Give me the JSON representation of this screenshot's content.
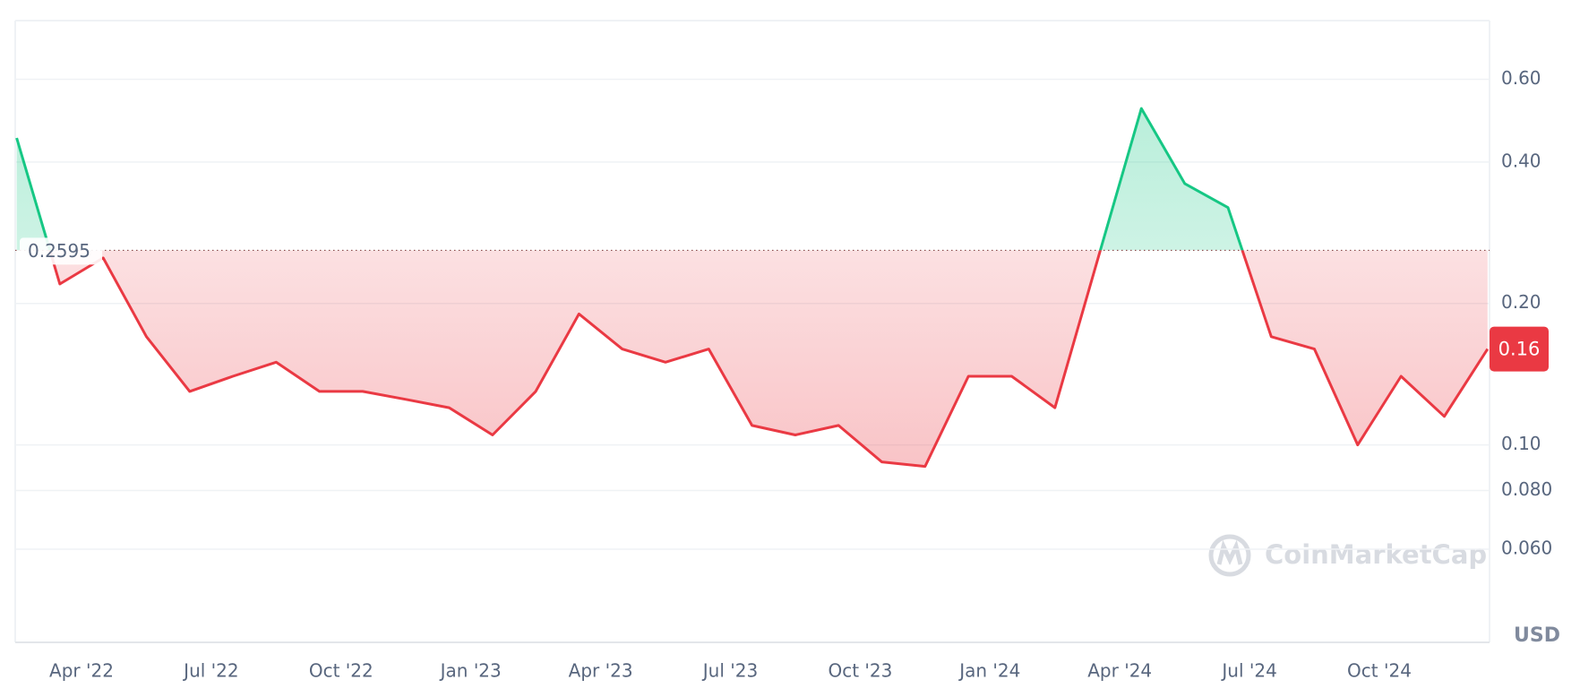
{
  "chart_data": {
    "type": "line",
    "categories": [
      null,
      null,
      "Apr '22",
      null,
      null,
      "Jul '22",
      null,
      null,
      "Oct '22",
      null,
      null,
      "Jan '23",
      null,
      null,
      "Apr '23",
      null,
      null,
      "Jul '23",
      null,
      null,
      "Oct '23",
      null,
      null,
      "Jan '24",
      null,
      null,
      "Apr '24",
      null,
      null,
      "Jul '24",
      null,
      null,
      "Oct '24",
      null,
      null
    ],
    "values": [
      0.45,
      0.22,
      0.25,
      0.17,
      0.13,
      0.14,
      0.15,
      0.13,
      0.13,
      0.125,
      0.12,
      0.105,
      0.13,
      0.19,
      0.16,
      0.15,
      0.16,
      0.11,
      0.105,
      0.11,
      0.092,
      0.09,
      0.14,
      0.14,
      0.12,
      0.25,
      0.52,
      0.36,
      0.32,
      0.17,
      0.16,
      0.1,
      0.14,
      0.115,
      0.16
    ],
    "baseline": 0.2595,
    "colors": {
      "above": "#16c784",
      "below": "#ea3943"
    },
    "log_scale": true,
    "ylim": [
      0.038,
      0.8
    ],
    "yticks": [
      {
        "value": 0.06,
        "label": "0.060"
      },
      {
        "value": 0.08,
        "label": "0.080"
      },
      {
        "value": 0.1,
        "label": "0.10"
      },
      {
        "value": 0.2,
        "label": "0.20"
      },
      {
        "value": 0.4,
        "label": "0.40"
      },
      {
        "value": 0.6,
        "label": "0.60"
      }
    ],
    "grid": true,
    "y_unit_label": "USD",
    "watermark": "CoinMarketCap"
  }
}
